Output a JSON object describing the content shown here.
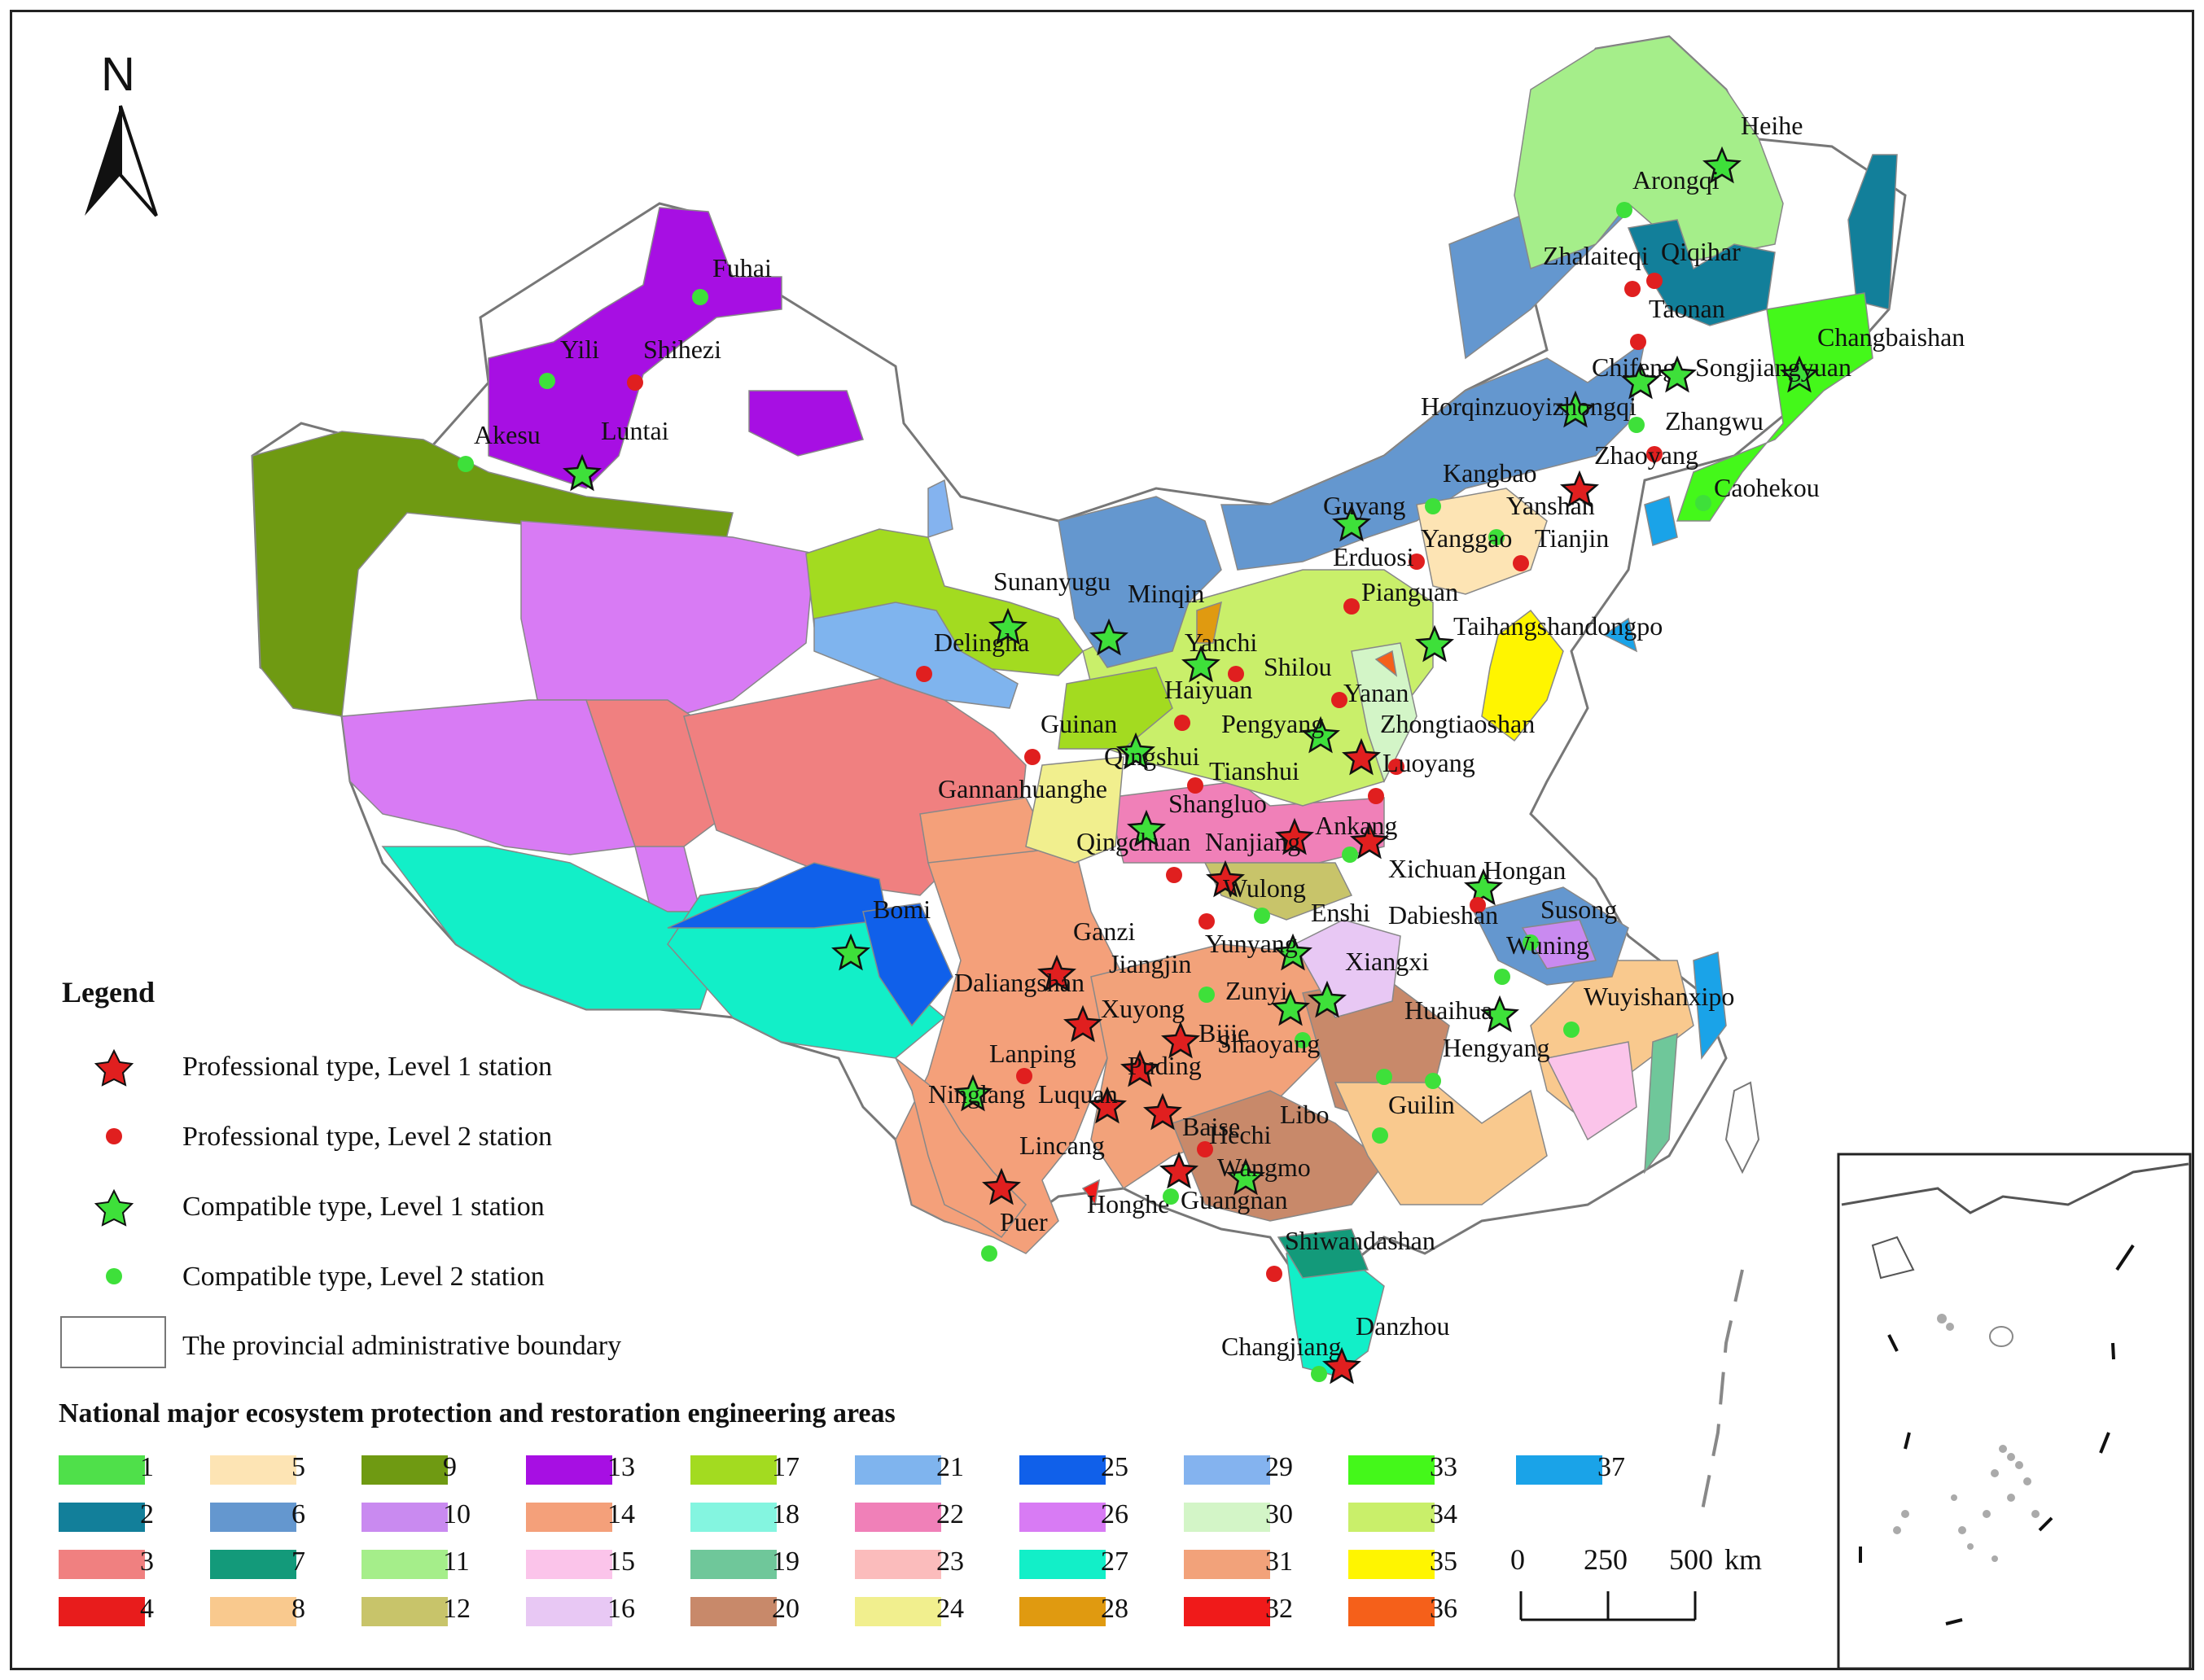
{
  "north_label": "N",
  "legend": {
    "title": "Legend",
    "items": [
      {
        "symbol": "red-star",
        "label": "Professional type, Level 1 station"
      },
      {
        "symbol": "red-dot",
        "label": "Professional type, Level 2 station"
      },
      {
        "symbol": "green-star",
        "label": "Compatible type, Level 1 station"
      },
      {
        "symbol": "green-dot",
        "label": "Compatible type, Level 2 station"
      },
      {
        "symbol": "white-box",
        "label": "The provincial administrative boundary"
      }
    ]
  },
  "engineering": {
    "title": "National major ecosystem protection and restoration engineering areas",
    "areas": [
      {
        "id": "1",
        "color": "#4fe04a"
      },
      {
        "id": "2",
        "color": "#127f9a"
      },
      {
        "id": "3",
        "color": "#f08080"
      },
      {
        "id": "4",
        "color": "#e81c1c"
      },
      {
        "id": "5",
        "color": "#fde4b4"
      },
      {
        "id": "6",
        "color": "#6497cf"
      },
      {
        "id": "7",
        "color": "#139a7a"
      },
      {
        "id": "8",
        "color": "#f9c98e"
      },
      {
        "id": "9",
        "color": "#6f9a12"
      },
      {
        "id": "10",
        "color": "#c98af0"
      },
      {
        "id": "11",
        "color": "#a5ee8a"
      },
      {
        "id": "12",
        "color": "#c8c46a"
      },
      {
        "id": "13",
        "color": "#a70fe3"
      },
      {
        "id": "14",
        "color": "#f4a07a"
      },
      {
        "id": "15",
        "color": "#fbc4ea"
      },
      {
        "id": "16",
        "color": "#e8c8f4"
      },
      {
        "id": "17",
        "color": "#a3db20"
      },
      {
        "id": "18",
        "color": "#84f5e0"
      },
      {
        "id": "19",
        "color": "#6fc79a"
      },
      {
        "id": "20",
        "color": "#c8896a"
      },
      {
        "id": "21",
        "color": "#7fb4ee"
      },
      {
        "id": "22",
        "color": "#f080b8"
      },
      {
        "id": "23",
        "color": "#fbbcbc"
      },
      {
        "id": "24",
        "color": "#f1ef8e"
      },
      {
        "id": "25",
        "color": "#1060ea"
      },
      {
        "id": "26",
        "color": "#d87bf4"
      },
      {
        "id": "27",
        "color": "#12efc8"
      },
      {
        "id": "28",
        "color": "#e09a10"
      },
      {
        "id": "29",
        "color": "#84b3ef"
      },
      {
        "id": "30",
        "color": "#d3f5c7"
      },
      {
        "id": "31",
        "color": "#f2a27a"
      },
      {
        "id": "32",
        "color": "#f01a1a"
      },
      {
        "id": "33",
        "color": "#44f81a"
      },
      {
        "id": "34",
        "color": "#c9ef6a"
      },
      {
        "id": "35",
        "color": "#fff500"
      },
      {
        "id": "36",
        "color": "#f5601a"
      },
      {
        "id": "37",
        "color": "#1aa3e8"
      }
    ]
  },
  "scale_bar": {
    "ticks": [
      "0",
      "250",
      "500"
    ],
    "unit": "km"
  },
  "stations": [
    {
      "name": "Fuhai",
      "type": "green-dot"
    },
    {
      "name": "Yili",
      "type": "green-dot"
    },
    {
      "name": "Shihezi",
      "type": "red-dot"
    },
    {
      "name": "Akesu",
      "type": "green-dot"
    },
    {
      "name": "Luntai",
      "type": "green-star"
    },
    {
      "name": "Heihe",
      "type": "green-star"
    },
    {
      "name": "Arongqi",
      "type": "green-dot"
    },
    {
      "name": "Zhalaiteqi",
      "type": "red-dot"
    },
    {
      "name": "Qiqihar",
      "type": "red-dot"
    },
    {
      "name": "Taonan",
      "type": "red-dot"
    },
    {
      "name": "Changbaishan",
      "type": "green-star"
    },
    {
      "name": "Chifeng",
      "type": "green-star"
    },
    {
      "name": "Songjiangyuan",
      "type": "green-star"
    },
    {
      "name": "Horqinzuoyizhongqi",
      "type": "green-star"
    },
    {
      "name": "Zhangwu",
      "type": "green-dot"
    },
    {
      "name": "Zhaoyang",
      "type": "red-dot"
    },
    {
      "name": "Kangbao",
      "type": "green-dot"
    },
    {
      "name": "Caohekou",
      "type": "green-dot"
    },
    {
      "name": "Guyang",
      "type": "green-star"
    },
    {
      "name": "Yanshan",
      "type": "red-star"
    },
    {
      "name": "Yanggao",
      "type": "green-dot"
    },
    {
      "name": "Tianjin",
      "type": "red-dot"
    },
    {
      "name": "Erduosi",
      "type": "red-dot"
    },
    {
      "name": "Pianguan",
      "type": "red-dot"
    },
    {
      "name": "Sunanyugu",
      "type": "green-star"
    },
    {
      "name": "Minqin",
      "type": "green-star"
    },
    {
      "name": "Delingha",
      "type": "red-dot"
    },
    {
      "name": "Yanchi",
      "type": "green-star"
    },
    {
      "name": "Taihangshandongpo",
      "type": "green-star"
    },
    {
      "name": "Shilou",
      "type": "red-dot"
    },
    {
      "name": "Haiyuan",
      "type": "red-dot"
    },
    {
      "name": "Yanan",
      "type": "red-dot"
    },
    {
      "name": "Pengyang",
      "type": "green-star"
    },
    {
      "name": "Zhongtiaoshan",
      "type": "red-star"
    },
    {
      "name": "Guinan",
      "type": "red-dot"
    },
    {
      "name": "Qingshui",
      "type": "green-star"
    },
    {
      "name": "Luoyang",
      "type": "red-dot"
    },
    {
      "name": "Tianshui",
      "type": "red-dot"
    },
    {
      "name": "Gannanhuanghe",
      "type": "green-star"
    },
    {
      "name": "Shangluo",
      "type": "red-dot"
    },
    {
      "name": "Ankang",
      "type": "red-star"
    },
    {
      "name": "Qingchuan",
      "type": "red-dot"
    },
    {
      "name": "Nanjiang",
      "type": "red-star"
    },
    {
      "name": "Xichuan",
      "type": "green-dot"
    },
    {
      "name": "Hongan",
      "type": "green-star"
    },
    {
      "name": "Bomi",
      "type": "green-star"
    },
    {
      "name": "Wulong",
      "type": "red-star"
    },
    {
      "name": "Enshi",
      "type": "green-dot"
    },
    {
      "name": "Dabieshan",
      "type": "red-dot"
    },
    {
      "name": "Susong",
      "type": "green-dot"
    },
    {
      "name": "Ganzi",
      "type": "red-dot"
    },
    {
      "name": "Jiangjin",
      "type": "green-dot"
    },
    {
      "name": "Yunyang",
      "type": "green-star"
    },
    {
      "name": "Wuning",
      "type": "green-dot"
    },
    {
      "name": "Xiangxi",
      "type": "green-star"
    },
    {
      "name": "Daliangshan",
      "type": "red-star"
    },
    {
      "name": "Zunyi",
      "type": "green-star"
    },
    {
      "name": "Huaihua",
      "type": "green-star"
    },
    {
      "name": "Wuyishanxipo",
      "type": "green-dot"
    },
    {
      "name": "Xuyong",
      "type": "red-star"
    },
    {
      "name": "Bijie",
      "type": "red-star"
    },
    {
      "name": "Shaoyang",
      "type": "green-dot"
    },
    {
      "name": "Hengyang",
      "type": "green-dot"
    },
    {
      "name": "Lanping",
      "type": "red-dot"
    },
    {
      "name": "Puding",
      "type": "red-star"
    },
    {
      "name": "Ninglang",
      "type": "green-star"
    },
    {
      "name": "Luquan",
      "type": "red-star"
    },
    {
      "name": "Guilin",
      "type": "green-dot"
    },
    {
      "name": "Libo",
      "type": "green-dot"
    },
    {
      "name": "Baise",
      "type": "red-star"
    },
    {
      "name": "Hechi",
      "type": "red-dot"
    },
    {
      "name": "Lincang",
      "type": "red-star"
    },
    {
      "name": "Wangmo",
      "type": "green-star"
    },
    {
      "name": "Honghe",
      "type": "red-star"
    },
    {
      "name": "Guangnan",
      "type": "green-dot"
    },
    {
      "name": "Puer",
      "type": "green-dot"
    },
    {
      "name": "Shiwandashan",
      "type": "red-dot"
    },
    {
      "name": "Changjiang",
      "type": "green-dot"
    },
    {
      "name": "Danzhou",
      "type": "red-star"
    }
  ]
}
